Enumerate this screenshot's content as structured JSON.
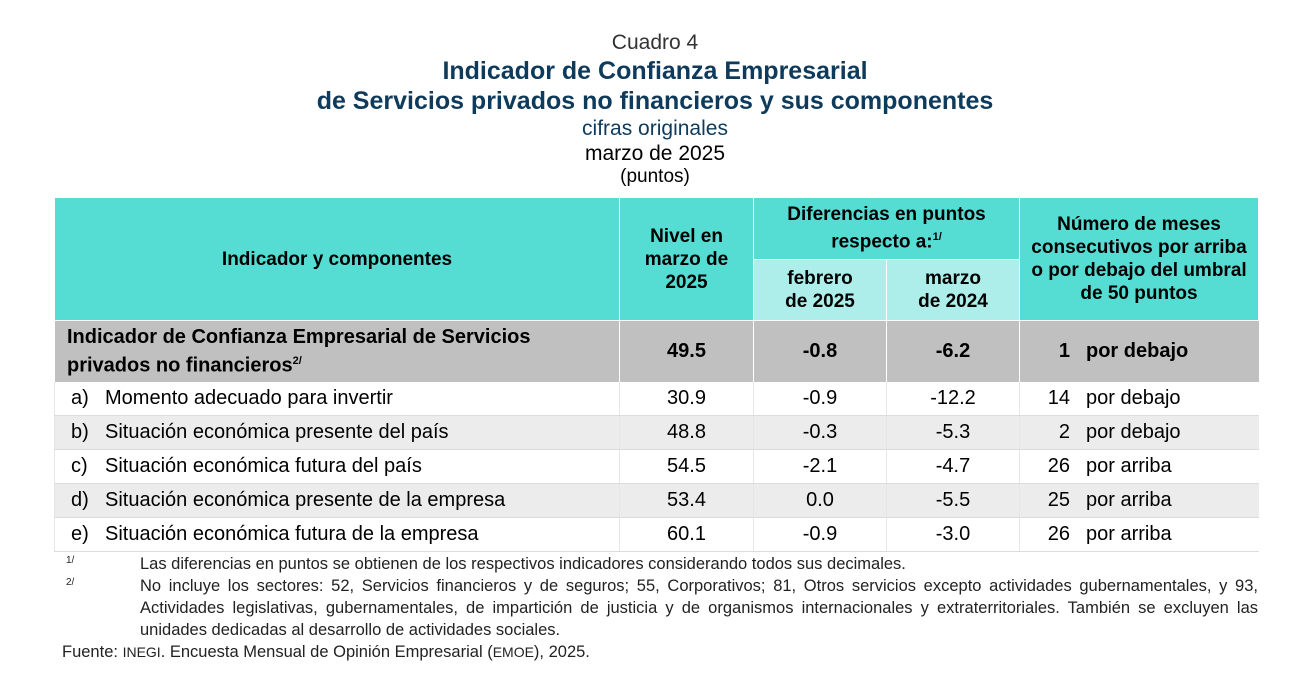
{
  "header": {
    "cuadro": "Cuadro 4",
    "title_line1": "Indicador de Confianza Empresarial",
    "title_line2": "de Servicios privados no financieros y sus componentes",
    "subtitle": "cifras originales",
    "period": "marzo de 2025",
    "units": "(puntos)"
  },
  "table": {
    "col_indicator": "Indicador y componentes",
    "col_level": "Nivel en marzo de 2025",
    "col_diff": "Diferencias en puntos respecto a:",
    "col_diff_note": "1/",
    "col_diff_feb": "febrero de 2025",
    "col_diff_mar": "marzo de 2024",
    "col_months": "Número de meses consecutivos por arriba o por debajo del umbral de 50 puntos",
    "main_row": {
      "label": "Indicador de Confianza Empresarial de Servicios privados no financieros",
      "note": "2/",
      "level": "49.5",
      "diff_feb": "-0.8",
      "diff_mar": "-6.2",
      "months": "1",
      "relation": "por debajo"
    },
    "rows": [
      {
        "letter": "a)",
        "label": "Momento adecuado para invertir",
        "level": "30.9",
        "diff_feb": "-0.9",
        "diff_mar": "-12.2",
        "months": "14",
        "relation": "por debajo"
      },
      {
        "letter": "b)",
        "label": "Situación económica presente del país",
        "level": "48.8",
        "diff_feb": "-0.3",
        "diff_mar": "-5.3",
        "months": "2",
        "relation": "por debajo"
      },
      {
        "letter": "c)",
        "label": "Situación económica futura del país",
        "level": "54.5",
        "diff_feb": "-2.1",
        "diff_mar": "-4.7",
        "months": "26",
        "relation": "por arriba"
      },
      {
        "letter": "d)",
        "label": "Situación económica presente de la empresa",
        "level": "53.4",
        "diff_feb": "0.0",
        "diff_mar": "-5.5",
        "months": "25",
        "relation": "por arriba"
      },
      {
        "letter": "e)",
        "label": "Situación económica futura de la empresa",
        "level": "60.1",
        "diff_feb": "-0.9",
        "diff_mar": "-3.0",
        "months": "26",
        "relation": "por arriba"
      }
    ]
  },
  "notes": {
    "n1_mark": "1/",
    "n1_text": "Las diferencias en puntos se obtienen de los respectivos indicadores considerando todos sus decimales.",
    "n2_mark": "2/",
    "n2_text": "No incluye los sectores: 52, Servicios financieros y de seguros; 55, Corporativos; 81, Otros servicios excepto actividades gubernamentales, y 93, Actividades legislativas, gubernamentales, de impartición de justicia y de organismos internacionales y extraterritoriales. También se excluyen las unidades dedicadas al desarrollo de actividades sociales.",
    "source_label": "Fuente:",
    "source_org": "INEGI",
    "source_text_a": ". Encuesta Mensual de Opinión Empresarial (",
    "source_abbr": "EMOE",
    "source_text_b": "), 2025."
  }
}
